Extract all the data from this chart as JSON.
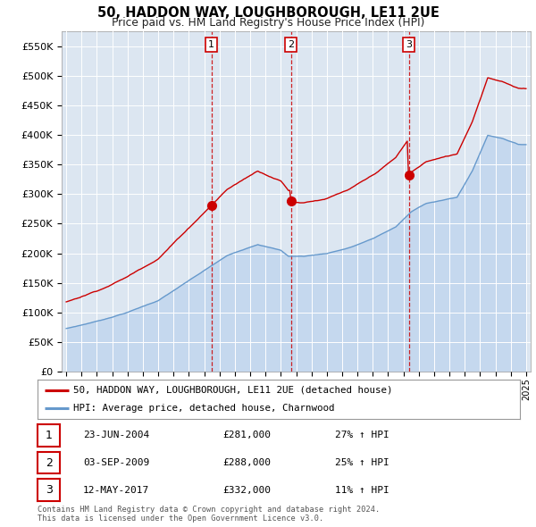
{
  "title": "50, HADDON WAY, LOUGHBOROUGH, LE11 2UE",
  "subtitle": "Price paid vs. HM Land Registry's House Price Index (HPI)",
  "legend_line1": "50, HADDON WAY, LOUGHBOROUGH, LE11 2UE (detached house)",
  "legend_line2": "HPI: Average price, detached house, Charnwood",
  "transactions": [
    {
      "num": 1,
      "date": "23-JUN-2004",
      "price": "£281,000",
      "hpi": "27% ↑ HPI"
    },
    {
      "num": 2,
      "date": "03-SEP-2009",
      "price": "£288,000",
      "hpi": "25% ↑ HPI"
    },
    {
      "num": 3,
      "date": "12-MAY-2017",
      "price": "£332,000",
      "hpi": "11% ↑ HPI"
    }
  ],
  "footer": "Contains HM Land Registry data © Crown copyright and database right 2024.\nThis data is licensed under the Open Government Licence v3.0.",
  "sale_years": [
    2004.47,
    2009.67,
    2017.36
  ],
  "sale_prices": [
    281000,
    288000,
    332000
  ],
  "red_color": "#cc0000",
  "blue_color": "#6699cc",
  "fill_color": "#c5d8ee",
  "background_color": "#dce6f1",
  "ylim": [
    0,
    575000
  ],
  "yticks": [
    0,
    50000,
    100000,
    150000,
    200000,
    250000,
    300000,
    350000,
    400000,
    450000,
    500000,
    550000
  ]
}
